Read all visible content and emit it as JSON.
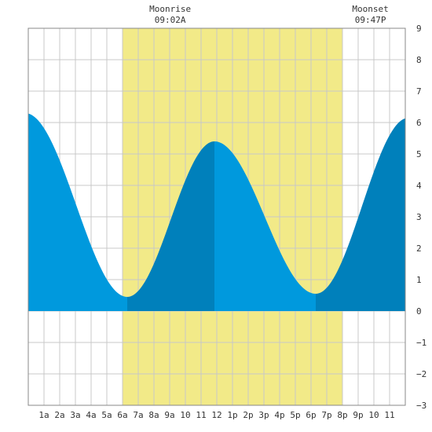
{
  "colors": {
    "daylight": "#f2ea88",
    "tide_rising": "#0099dd",
    "tide_falling": "#0080bb",
    "grid": "#c8c8c8",
    "frame": "#888888",
    "text": "#333333"
  },
  "header": {
    "moonrise_label": "Moonrise",
    "moonrise_time": "09:02A",
    "moonset_label": "Moonset",
    "moonset_time": "09:47P"
  },
  "chart_data": {
    "type": "area",
    "title": "",
    "xlabel": "",
    "ylabel": "",
    "xlim": [
      0,
      24
    ],
    "ylim": [
      -3,
      9
    ],
    "grid": true,
    "daylight_hours": [
      6.0,
      20.0
    ],
    "moonrise_hour": 9.03,
    "moonset_hour": 21.78,
    "x_ticks": [
      {
        "hour": 1,
        "label": "1a"
      },
      {
        "hour": 2,
        "label": "2a"
      },
      {
        "hour": 3,
        "label": "3a"
      },
      {
        "hour": 4,
        "label": "4a"
      },
      {
        "hour": 5,
        "label": "5a"
      },
      {
        "hour": 6,
        "label": "6a"
      },
      {
        "hour": 7,
        "label": "7a"
      },
      {
        "hour": 8,
        "label": "8a"
      },
      {
        "hour": 9,
        "label": "9a"
      },
      {
        "hour": 10,
        "label": "10"
      },
      {
        "hour": 11,
        "label": "11"
      },
      {
        "hour": 12,
        "label": "12"
      },
      {
        "hour": 13,
        "label": "1p"
      },
      {
        "hour": 14,
        "label": "2p"
      },
      {
        "hour": 15,
        "label": "3p"
      },
      {
        "hour": 16,
        "label": "4p"
      },
      {
        "hour": 17,
        "label": "5p"
      },
      {
        "hour": 18,
        "label": "6p"
      },
      {
        "hour": 19,
        "label": "7p"
      },
      {
        "hour": 20,
        "label": "8p"
      },
      {
        "hour": 21,
        "label": "9p"
      },
      {
        "hour": 22,
        "label": "10"
      },
      {
        "hour": 23,
        "label": "11"
      }
    ],
    "y_ticks": [
      {
        "value": 9,
        "label": "9"
      },
      {
        "value": 8,
        "label": "8"
      },
      {
        "value": 7,
        "label": "7"
      },
      {
        "value": 6,
        "label": "6"
      },
      {
        "value": 5,
        "label": "5"
      },
      {
        "value": 4,
        "label": "4"
      },
      {
        "value": 3,
        "label": "3"
      },
      {
        "value": 2,
        "label": "2"
      },
      {
        "value": 1,
        "label": "1"
      },
      {
        "value": 0,
        "label": "0"
      },
      {
        "value": -1,
        "label": "−1"
      },
      {
        "value": -2,
        "label": "−2"
      },
      {
        "value": -3,
        "label": "−3"
      }
    ],
    "tide_extremes": [
      {
        "hour": -0.2,
        "height": 6.3,
        "kind": "high"
      },
      {
        "hour": 6.3,
        "height": 0.45,
        "kind": "low"
      },
      {
        "hour": 11.85,
        "height": 5.4,
        "kind": "high"
      },
      {
        "hour": 18.3,
        "height": 0.55,
        "kind": "low"
      },
      {
        "hour": 24.2,
        "height": 6.15,
        "kind": "high"
      }
    ]
  }
}
